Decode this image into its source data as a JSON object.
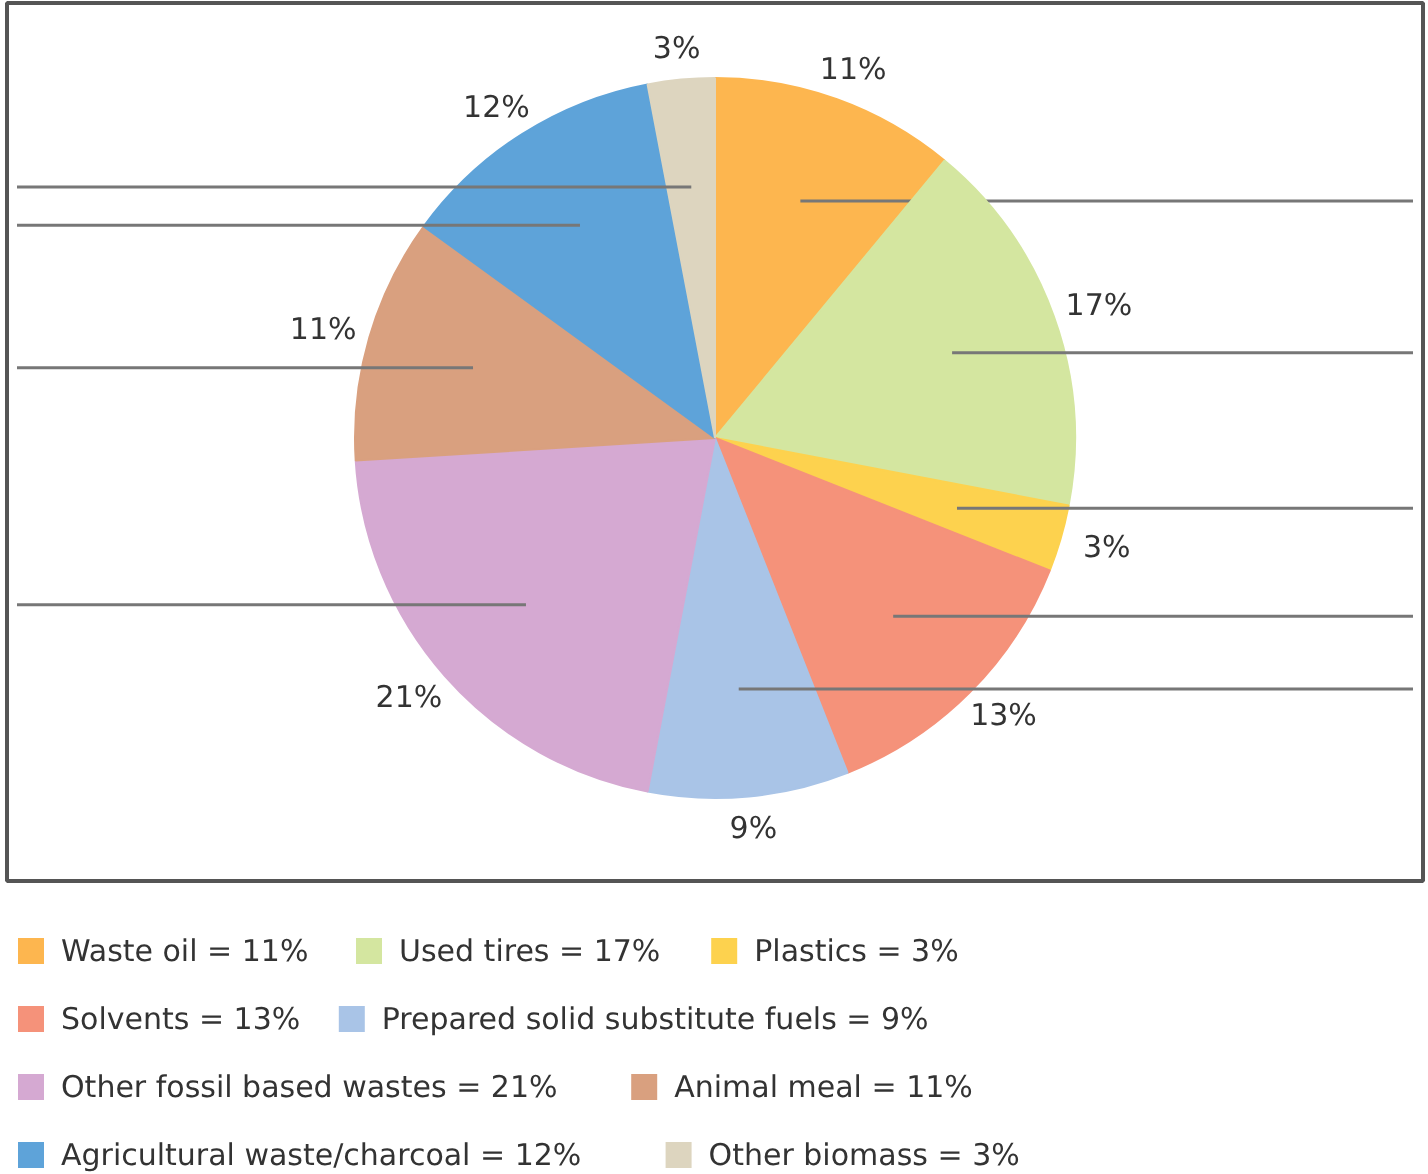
{
  "chart_data": {
    "type": "pie",
    "categories": [
      "Waste oil = 11%",
      "Used tires = 17%",
      "Plastics = 3%",
      "Solvents = 13%",
      "Prepared solid substitute fuels = 9%",
      "Other fossil based wastes = 21%",
      "Animal meal = 11%",
      "Agricultural waste/charcoal = 12%",
      "Other biomass = 3%"
    ],
    "values": [
      11,
      17,
      3,
      13,
      9,
      21,
      11,
      12,
      3
    ],
    "value_labels": [
      "11%",
      "17%",
      "3%",
      "13%",
      "9%",
      "21%",
      "11%",
      "12%",
      "3%"
    ],
    "colors": [
      "#fdb64f",
      "#d4e6a0",
      "#fdd24e",
      "#f5927a",
      "#a9c4e7",
      "#d5a9d2",
      "#d9a07f",
      "#5ea3d9",
      "#ddd5bf"
    ],
    "legend": "bottom"
  }
}
